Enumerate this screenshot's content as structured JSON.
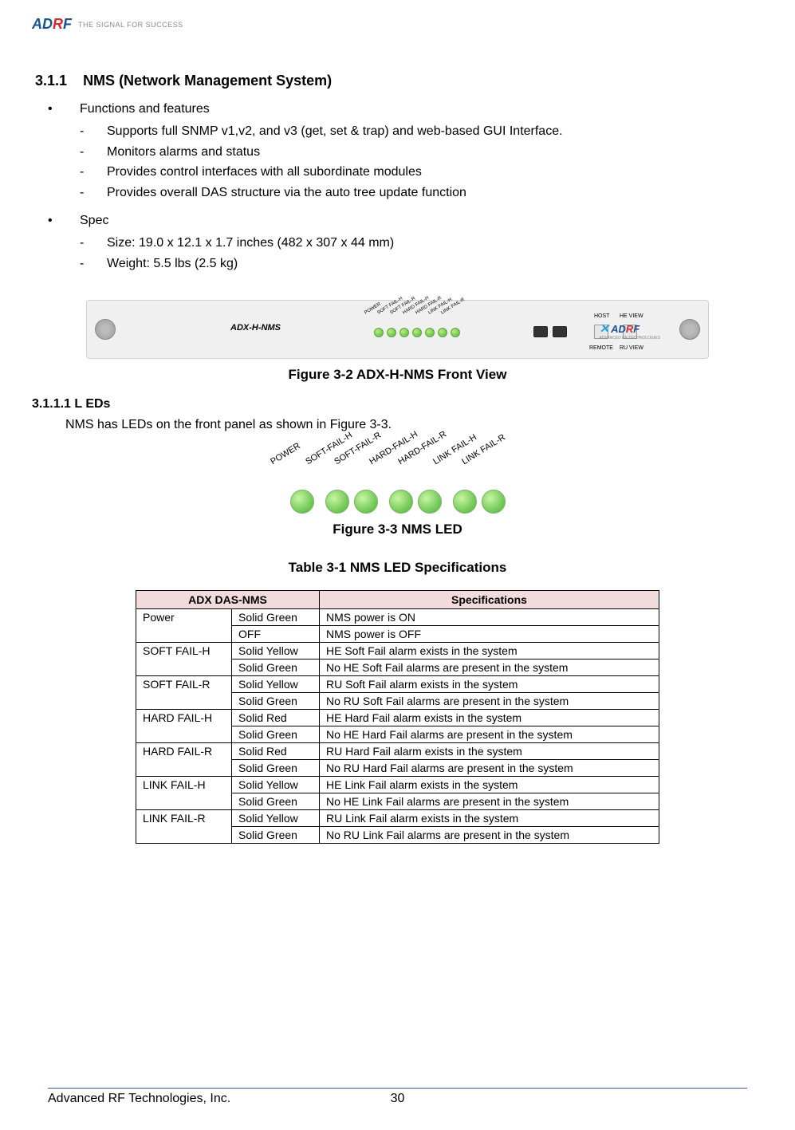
{
  "header": {
    "logo_text": "AD",
    "logo_r": "R",
    "logo_f": "F",
    "tagline": "THE SIGNAL FOR SUCCESS"
  },
  "section": {
    "number": "3.1.1",
    "title": "NMS (Network Management System)",
    "bullet1": "Functions and features",
    "features": [
      "Supports full SNMP v1,v2, and v3 (get, set & trap) and web-based GUI Interface.",
      "Monitors alarms and status",
      "Provides control interfaces with all subordinate modules",
      "Provides overall DAS structure via the auto tree update function"
    ],
    "bullet2": "Spec",
    "specs": [
      "Size: 19.0 x 12.1 x 1.7 inches (482 x 307 x 44 mm)",
      "Weight: 5.5 lbs (2.5 kg)"
    ]
  },
  "device": {
    "label": "ADX-H-NMS",
    "leds": [
      "POWER",
      "SOFT FAIL-H",
      "SOFT FAIL-R",
      "HARD FAIL-H",
      "HARD FAIL-R",
      "LINK FAIL-H",
      "LINK FAIL-R"
    ],
    "host_label": "HOST",
    "heview_label": "HE VIEW",
    "remote_label": "REMOTE",
    "ruview_label": "RU VIEW",
    "adrf": "AD",
    "adrf_r": "R",
    "adrf_f": "F",
    "adrf_sub": "ADVANCED RF TECHNOLOGIES"
  },
  "fig1_caption": "Figure 3-2  ADX-H-NMS Front View",
  "subsection": {
    "number": "3.1.1.1",
    "title": "L EDs",
    "text": "NMS has LEDs on the front panel as shown in Figure 3-3."
  },
  "led_fig": {
    "labels": [
      "POWER",
      "SOFT-FAIL-H",
      "SOFT-FAIL-R",
      "HARD-FAIL-H",
      "HARD-FAIL-R",
      "LINK FAIL-H",
      "LINK FAIL-R"
    ],
    "led_color": "#77cc5c"
  },
  "fig2_caption": "Figure 3-3  NMS LED",
  "table": {
    "title": "Table 3-1    NMS LED Specifications",
    "header1": "ADX DAS-NMS",
    "header2": "Specifications",
    "header_bg": "#f2dbdb",
    "rows": [
      {
        "name": "Power",
        "state": "Solid Green",
        "spec": "NMS power is ON",
        "rowspan": 2
      },
      {
        "name": "",
        "state": "OFF",
        "spec": "NMS power is OFF"
      },
      {
        "name": "SOFT FAIL-H",
        "state": "Solid Yellow",
        "spec": "HE Soft Fail alarm exists in the system",
        "rowspan": 2
      },
      {
        "name": "",
        "state": "Solid Green",
        "spec": "No HE Soft Fail alarms are present in the system"
      },
      {
        "name": "SOFT FAIL-R",
        "state": "Solid Yellow",
        "spec": "RU Soft Fail alarm exists in the system",
        "rowspan": 2
      },
      {
        "name": "",
        "state": "Solid Green",
        "spec": "No RU Soft Fail alarms are present in the system"
      },
      {
        "name": "HARD FAIL-H",
        "state": "Solid Red",
        "spec": "HE Hard Fail alarm exists in the system",
        "rowspan": 2
      },
      {
        "name": "",
        "state": "Solid Green",
        "spec": "No HE Hard Fail alarms are present in the system"
      },
      {
        "name": "HARD FAIL-R",
        "state": "Solid Red",
        "spec": "RU Hard Fail alarm exists in the system",
        "rowspan": 2
      },
      {
        "name": "",
        "state": "Solid Green",
        "spec": "No RU Hard Fail alarms are present in the system"
      },
      {
        "name": "LINK FAIL-H",
        "state": "Solid Yellow",
        "spec": "HE Link Fail alarm exists in the system",
        "rowspan": 2
      },
      {
        "name": "",
        "state": "Solid Green",
        "spec": "No HE Link Fail alarms are present in the system"
      },
      {
        "name": "LINK FAIL-R",
        "state": "Solid Yellow",
        "spec": "RU Link Fail alarm exists in the system",
        "rowspan": 2
      },
      {
        "name": "",
        "state": "Solid Green",
        "spec": "No RU Link Fail alarms are present in the system"
      }
    ]
  },
  "footer": {
    "company": "Advanced RF Technologies, Inc.",
    "page": "30"
  }
}
